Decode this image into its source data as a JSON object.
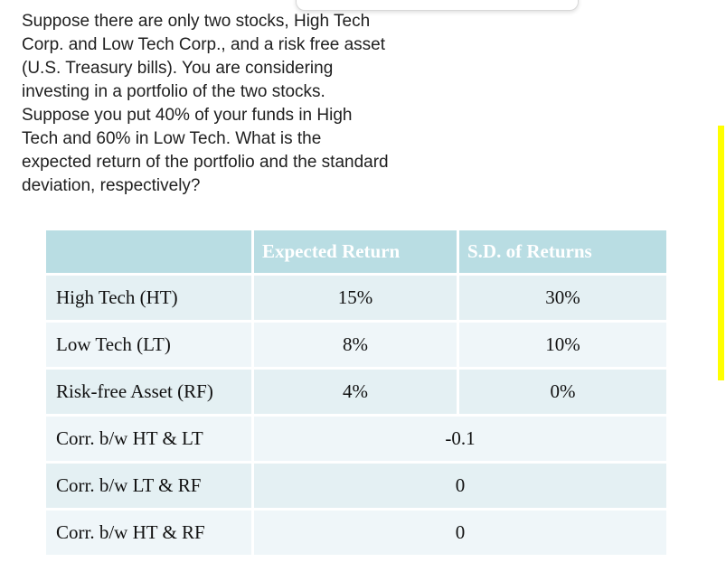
{
  "question": {
    "lines": [
      "Suppose there are only two stocks, High Tech",
      "Corp. and Low Tech Corp., and a risk free asset",
      "(U.S. Treasury bills). You are considering",
      "investing in a portfolio of the two stocks.",
      "Suppose you put 40% of your funds in High",
      "Tech and 60% in Low Tech. What is the",
      "expected return of the portfolio and the standard",
      "deviation, respectively?"
    ]
  },
  "table": {
    "headers": {
      "col1": "",
      "expected_return": "Expected Return",
      "sd_of_returns": "S.D. of Returns"
    },
    "rows": [
      {
        "label": "High Tech (HT)",
        "expected_return": "15%",
        "sd": "30%"
      },
      {
        "label": "Low Tech (LT)",
        "expected_return": "8%",
        "sd": "10%"
      },
      {
        "label": "Risk-free Asset (RF)",
        "expected_return": "4%",
        "sd": "0%"
      },
      {
        "label": "Corr. b/w HT & LT",
        "value": "-0.1"
      },
      {
        "label": "Corr. b/w LT & RF",
        "value": "0"
      },
      {
        "label": "Corr. b/w HT & RF",
        "value": "0"
      }
    ]
  },
  "colors": {
    "header_bg": "#b9dde3",
    "row_odd": "#e4f0f3",
    "row_even": "#eff6f9",
    "highlight_bar": "#ffff00",
    "header_text": "#ffffff",
    "body_text": "#202020"
  }
}
